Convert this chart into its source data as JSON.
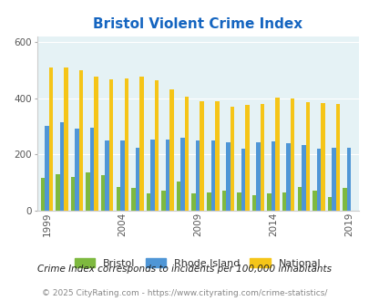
{
  "title": "Bristol Violent Crime Index",
  "subtitle": "Crime Index corresponds to incidents per 100,000 inhabitants",
  "footer": "© 2025 CityRating.com - https://www.cityrating.com/crime-statistics/",
  "years": [
    1999,
    2000,
    2001,
    2002,
    2003,
    2004,
    2005,
    2006,
    2007,
    2008,
    2009,
    2010,
    2011,
    2012,
    2013,
    2014,
    2015,
    2016,
    2017,
    2018,
    2019,
    2020
  ],
  "bristol": [
    115,
    130,
    120,
    135,
    125,
    85,
    80,
    60,
    70,
    105,
    60,
    65,
    70,
    65,
    55,
    60,
    65,
    85,
    70,
    50,
    80,
    0
  ],
  "rhode_island": [
    300,
    315,
    290,
    295,
    248,
    250,
    225,
    252,
    252,
    260,
    248,
    250,
    242,
    220,
    244,
    245,
    240,
    232,
    220,
    222,
    222,
    0
  ],
  "national": [
    510,
    510,
    500,
    475,
    465,
    470,
    475,
    462,
    430,
    406,
    390,
    388,
    368,
    375,
    380,
    401,
    397,
    386,
    382,
    379,
    0,
    0
  ],
  "num_bars": 21,
  "ylim": [
    0,
    620
  ],
  "yticks": [
    0,
    200,
    400,
    600
  ],
  "xtick_years": [
    1999,
    2004,
    2009,
    2014,
    2019
  ],
  "color_bristol": "#7EB93F",
  "color_rhode_island": "#4F96D6",
  "color_national": "#F5C518",
  "bg_color": "#E5F2F5",
  "title_color": "#1565C0",
  "subtitle_color": "#222222",
  "footer_color": "#888888",
  "legend_labels": [
    "Bristol",
    "Rhode Island",
    "National"
  ]
}
